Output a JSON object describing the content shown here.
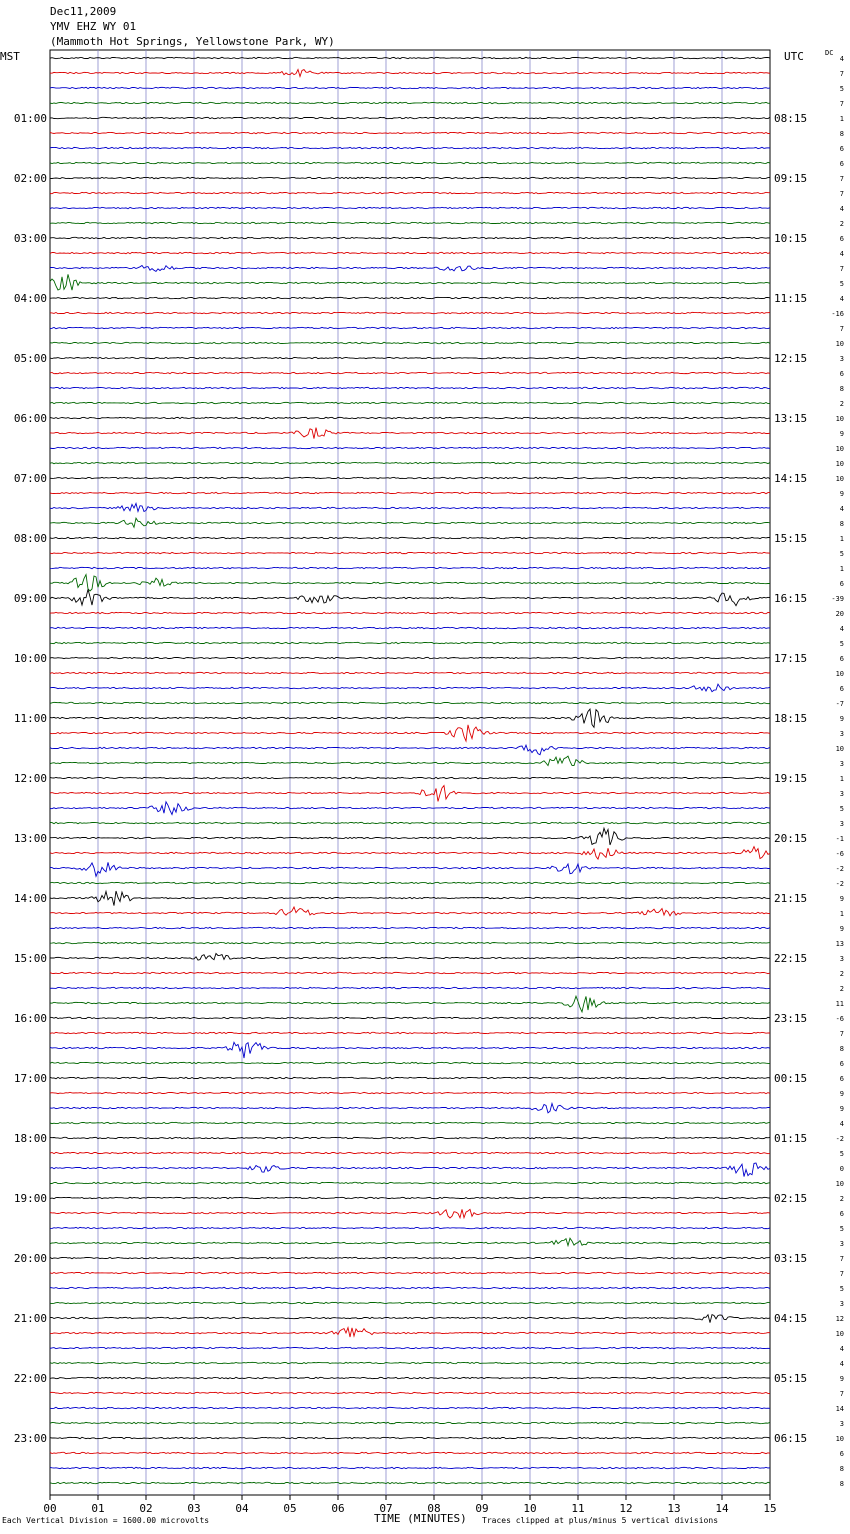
{
  "header": {
    "date": "Dec11,2009",
    "station": "YMV EHZ WY 01",
    "location": "(Mammoth Hot Springs, Yellowstone Park, WY)"
  },
  "left_tz": "MST",
  "right_tz": "UTC",
  "dc_label": "DC",
  "footer": {
    "scale": "Each Vertical Division = 1600.00 microvolts",
    "clip_note": "Traces clipped at plus/minus 5 vertical divisions"
  },
  "colors": {
    "black": "#000000",
    "red": "#dd0000",
    "blue": "#0000cc",
    "green": "#006600",
    "grid": "#8888cc"
  },
  "chart_data": {
    "type": "line",
    "xlabel": "TIME (MINUTES)",
    "x_ticks": [
      "00",
      "01",
      "02",
      "03",
      "04",
      "05",
      "06",
      "07",
      "08",
      "09",
      "10",
      "11",
      "12",
      "13",
      "14",
      "15"
    ],
    "xlim": [
      0,
      15
    ],
    "trace_colors": [
      "black",
      "red",
      "blue",
      "green"
    ],
    "left_labels": [
      "",
      "01:00",
      "02:00",
      "03:00",
      "04:00",
      "05:00",
      "06:00",
      "07:00",
      "08:00",
      "09:00",
      "10:00",
      "11:00",
      "12:00",
      "13:00",
      "14:00",
      "15:00",
      "16:00",
      "17:00",
      "18:00",
      "19:00",
      "20:00",
      "21:00",
      "22:00",
      "23:00"
    ],
    "right_labels": [
      "",
      "08:15",
      "09:15",
      "10:15",
      "11:15",
      "12:15",
      "13:15",
      "14:15",
      "15:15",
      "16:15",
      "17:15",
      "18:15",
      "19:15",
      "20:15",
      "21:15",
      "22:15",
      "23:15",
      "00:15",
      "01:15",
      "02:15",
      "03:15",
      "04:15",
      "05:15",
      "06:15"
    ],
    "dc_offsets": [
      "4",
      "7",
      "5",
      "7",
      "1",
      "8",
      "6",
      "6",
      "7",
      "7",
      "4",
      "2",
      "6",
      "4",
      "7",
      "5",
      "4",
      "-16",
      "7",
      "10",
      "3",
      "6",
      "8",
      "2",
      "10",
      "9",
      "10",
      "10",
      "10",
      "9",
      "4",
      "8",
      "1",
      "5",
      "1",
      "6",
      "-39",
      "20",
      "4",
      "5",
      "6",
      "10",
      "6",
      "-7",
      "9",
      "3",
      "10",
      "3",
      "1",
      "3",
      "5",
      "3",
      "-1",
      "-6",
      "-2",
      "-2",
      "9",
      "1",
      "9",
      "13",
      "3",
      "2",
      "2",
      "11",
      "-6",
      "7",
      "8",
      "6",
      "6",
      "9",
      "9",
      "4",
      "-2",
      "5",
      "0",
      "10",
      "2",
      "6",
      "5",
      "3",
      "7",
      "7",
      "5",
      "3",
      "12",
      "10",
      "4",
      "4",
      "9",
      "7",
      "14",
      "3",
      "10",
      "6",
      "8",
      "8"
    ],
    "events": [
      {
        "row": 1,
        "minute": 5.2,
        "amp": 1.5
      },
      {
        "row": 15,
        "minute": 0.3,
        "amp": 5
      },
      {
        "row": 14,
        "minute": 2.2,
        "amp": 2
      },
      {
        "row": 14,
        "minute": 8.5,
        "amp": 2
      },
      {
        "row": 25,
        "minute": 5.5,
        "amp": 2.5
      },
      {
        "row": 30,
        "minute": 1.8,
        "amp": 2
      },
      {
        "row": 31,
        "minute": 1.8,
        "amp": 2
      },
      {
        "row": 35,
        "minute": 0.8,
        "amp": 4
      },
      {
        "row": 35,
        "minute": 2.2,
        "amp": 2
      },
      {
        "row": 36,
        "minute": 0.8,
        "amp": 4
      },
      {
        "row": 36,
        "minute": 5.6,
        "amp": 3
      },
      {
        "row": 36,
        "minute": 14.2,
        "amp": 4
      },
      {
        "row": 42,
        "minute": 13.8,
        "amp": 3
      },
      {
        "row": 44,
        "minute": 11.3,
        "amp": 5
      },
      {
        "row": 45,
        "minute": 8.7,
        "amp": 4
      },
      {
        "row": 46,
        "minute": 10.2,
        "amp": 3
      },
      {
        "row": 47,
        "minute": 10.7,
        "amp": 4
      },
      {
        "row": 49,
        "minute": 8.1,
        "amp": 4
      },
      {
        "row": 50,
        "minute": 2.5,
        "amp": 3
      },
      {
        "row": 52,
        "minute": 11.5,
        "amp": 5
      },
      {
        "row": 53,
        "minute": 14.8,
        "amp": 4
      },
      {
        "row": 53,
        "minute": 11.5,
        "amp": 3
      },
      {
        "row": 54,
        "minute": 1.0,
        "amp": 4
      },
      {
        "row": 54,
        "minute": 10.8,
        "amp": 3
      },
      {
        "row": 56,
        "minute": 1.3,
        "amp": 4
      },
      {
        "row": 57,
        "minute": 5.1,
        "amp": 3
      },
      {
        "row": 57,
        "minute": 12.7,
        "amp": 2
      },
      {
        "row": 60,
        "minute": 3.4,
        "amp": 2
      },
      {
        "row": 63,
        "minute": 11.1,
        "amp": 4
      },
      {
        "row": 66,
        "minute": 4.1,
        "amp": 5
      },
      {
        "row": 70,
        "minute": 10.4,
        "amp": 2
      },
      {
        "row": 74,
        "minute": 14.5,
        "amp": 4
      },
      {
        "row": 74,
        "minute": 4.5,
        "amp": 2
      },
      {
        "row": 77,
        "minute": 8.5,
        "amp": 3
      },
      {
        "row": 79,
        "minute": 10.8,
        "amp": 2
      },
      {
        "row": 85,
        "minute": 6.3,
        "amp": 4
      },
      {
        "row": 84,
        "minute": 13.8,
        "amp": 2
      }
    ]
  }
}
